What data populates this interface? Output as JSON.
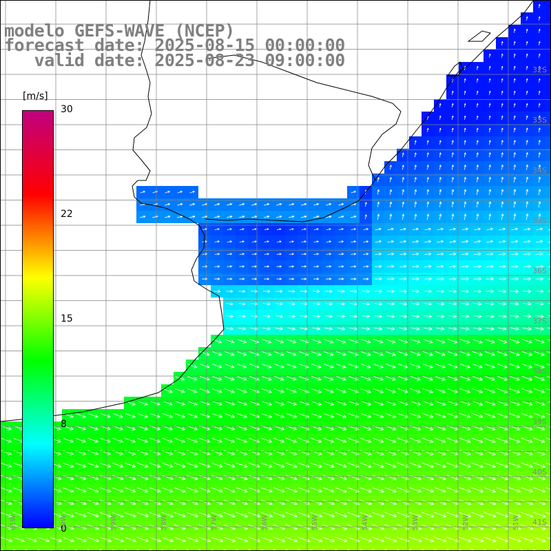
{
  "title": {
    "line1": "modelo GEFS-WAVE (NCEP)",
    "line2": "forecast date: 2025-08-15 00:00:00",
    "line3": "   valid date: 2025-08-23 09:00:00"
  },
  "colorbar": {
    "unit": "[m/s]",
    "ticks": [
      "0",
      "8",
      "15",
      "22",
      "30"
    ],
    "min": 0,
    "max": 30,
    "colors": [
      "#0000ff",
      "#00ffff",
      "#00ff00",
      "#ffff00",
      "#ff0000",
      "#c0007f"
    ]
  },
  "lat_labels": [
    "32S",
    "33S",
    "34S",
    "35S",
    "36S",
    "37S",
    "38S",
    "39S",
    "40S",
    "41S"
  ],
  "lon_labels": [
    "61W",
    "60W",
    "59W",
    "58W",
    "57W",
    "56W",
    "55W",
    "54W",
    "53W",
    "52W",
    "51W"
  ],
  "colors": {
    "land": "#ffffff",
    "grid": "#808080",
    "coast": "#000000",
    "arrow": "#ffffff",
    "title": "#808080"
  }
}
